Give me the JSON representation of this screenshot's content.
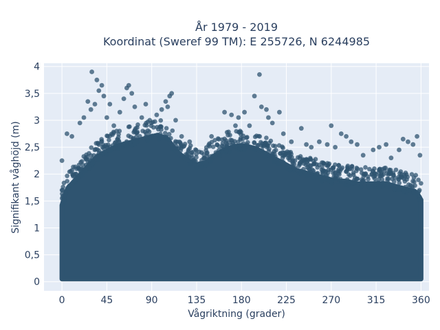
{
  "chart_data": {
    "type": "scatter",
    "title_line1": "År 1979 - 2019",
    "title_line2": "Koordinat (Sweref 99 TM): E 255726, N 6244985",
    "xlabel": "Vågriktning (grader)",
    "ylabel": "Signifikant våghöjd (m)",
    "xlim": [
      -18,
      368
    ],
    "ylim": [
      -0.17,
      4.06
    ],
    "x_ticks": [
      0,
      45,
      90,
      135,
      180,
      225,
      270,
      315,
      360
    ],
    "x_tick_labels": [
      "0",
      "45",
      "90",
      "135",
      "180",
      "225",
      "270",
      "315",
      "360"
    ],
    "y_ticks": [
      0,
      0.5,
      1,
      1.5,
      2,
      2.5,
      3,
      3.5,
      4
    ],
    "y_tick_labels": [
      "0",
      "0,5",
      "1",
      "1,5",
      "2",
      "2,5",
      "3",
      "3,5",
      "4"
    ],
    "grid": true,
    "marker_color": "#2f5470",
    "marker_opacity": 0.75,
    "background_color": "#e5ecf6",
    "dense_region": {
      "x_range": [
        0,
        360
      ],
      "y_min": 0.05,
      "envelope_x": [
        0,
        5,
        15,
        25,
        35,
        45,
        55,
        65,
        75,
        85,
        95,
        105,
        115,
        125,
        135,
        145,
        155,
        165,
        175,
        185,
        195,
        205,
        215,
        225,
        235,
        245,
        255,
        265,
        275,
        285,
        295,
        305,
        315,
        325,
        335,
        345,
        355,
        360
      ],
      "envelope_y": [
        1.5,
        1.8,
        2.0,
        2.2,
        2.4,
        2.5,
        2.6,
        2.65,
        2.7,
        2.75,
        2.8,
        2.75,
        2.5,
        2.35,
        2.25,
        2.3,
        2.45,
        2.55,
        2.6,
        2.6,
        2.55,
        2.45,
        2.35,
        2.25,
        2.15,
        2.1,
        2.05,
        2.0,
        1.95,
        1.95,
        1.9,
        1.9,
        1.9,
        1.9,
        1.85,
        1.8,
        1.75,
        1.6
      ]
    },
    "outlier_points": [
      {
        "x": 0,
        "y": 2.25
      },
      {
        "x": 5,
        "y": 2.75
      },
      {
        "x": 10,
        "y": 2.7
      },
      {
        "x": 18,
        "y": 2.95
      },
      {
        "x": 22,
        "y": 3.05
      },
      {
        "x": 26,
        "y": 3.35
      },
      {
        "x": 29,
        "y": 3.2
      },
      {
        "x": 30,
        "y": 3.9
      },
      {
        "x": 33,
        "y": 3.3
      },
      {
        "x": 35,
        "y": 3.75
      },
      {
        "x": 37,
        "y": 3.55
      },
      {
        "x": 40,
        "y": 3.65
      },
      {
        "x": 42,
        "y": 3.45
      },
      {
        "x": 45,
        "y": 3.05
      },
      {
        "x": 48,
        "y": 3.3
      },
      {
        "x": 52,
        "y": 2.9
      },
      {
        "x": 58,
        "y": 3.15
      },
      {
        "x": 62,
        "y": 3.4
      },
      {
        "x": 65,
        "y": 3.6
      },
      {
        "x": 67,
        "y": 3.65
      },
      {
        "x": 70,
        "y": 3.5
      },
      {
        "x": 73,
        "y": 3.25
      },
      {
        "x": 80,
        "y": 3.05
      },
      {
        "x": 84,
        "y": 3.3
      },
      {
        "x": 88,
        "y": 3.0
      },
      {
        "x": 95,
        "y": 3.1
      },
      {
        "x": 100,
        "y": 3.2
      },
      {
        "x": 104,
        "y": 3.35
      },
      {
        "x": 106,
        "y": 3.25
      },
      {
        "x": 108,
        "y": 3.45
      },
      {
        "x": 110,
        "y": 3.5
      },
      {
        "x": 114,
        "y": 3.0
      },
      {
        "x": 120,
        "y": 2.7
      },
      {
        "x": 128,
        "y": 2.6
      },
      {
        "x": 140,
        "y": 2.4
      },
      {
        "x": 150,
        "y": 2.7
      },
      {
        "x": 163,
        "y": 3.15
      },
      {
        "x": 170,
        "y": 3.1
      },
      {
        "x": 174,
        "y": 2.9
      },
      {
        "x": 177,
        "y": 3.05
      },
      {
        "x": 183,
        "y": 3.15
      },
      {
        "x": 188,
        "y": 2.9
      },
      {
        "x": 193,
        "y": 3.45
      },
      {
        "x": 198,
        "y": 3.85
      },
      {
        "x": 200,
        "y": 3.25
      },
      {
        "x": 205,
        "y": 3.2
      },
      {
        "x": 207,
        "y": 3.05
      },
      {
        "x": 211,
        "y": 2.95
      },
      {
        "x": 218,
        "y": 3.15
      },
      {
        "x": 222,
        "y": 2.75
      },
      {
        "x": 230,
        "y": 2.6
      },
      {
        "x": 240,
        "y": 2.85
      },
      {
        "x": 245,
        "y": 2.55
      },
      {
        "x": 250,
        "y": 2.5
      },
      {
        "x": 258,
        "y": 2.6
      },
      {
        "x": 266,
        "y": 2.55
      },
      {
        "x": 270,
        "y": 2.9
      },
      {
        "x": 274,
        "y": 2.5
      },
      {
        "x": 280,
        "y": 2.75
      },
      {
        "x": 285,
        "y": 2.7
      },
      {
        "x": 290,
        "y": 2.6
      },
      {
        "x": 296,
        "y": 2.55
      },
      {
        "x": 302,
        "y": 2.35
      },
      {
        "x": 312,
        "y": 2.45
      },
      {
        "x": 318,
        "y": 2.5
      },
      {
        "x": 325,
        "y": 2.55
      },
      {
        "x": 330,
        "y": 2.3
      },
      {
        "x": 338,
        "y": 2.45
      },
      {
        "x": 342,
        "y": 2.65
      },
      {
        "x": 347,
        "y": 2.6
      },
      {
        "x": 352,
        "y": 2.55
      },
      {
        "x": 356,
        "y": 2.7
      },
      {
        "x": 359,
        "y": 2.35
      }
    ]
  }
}
